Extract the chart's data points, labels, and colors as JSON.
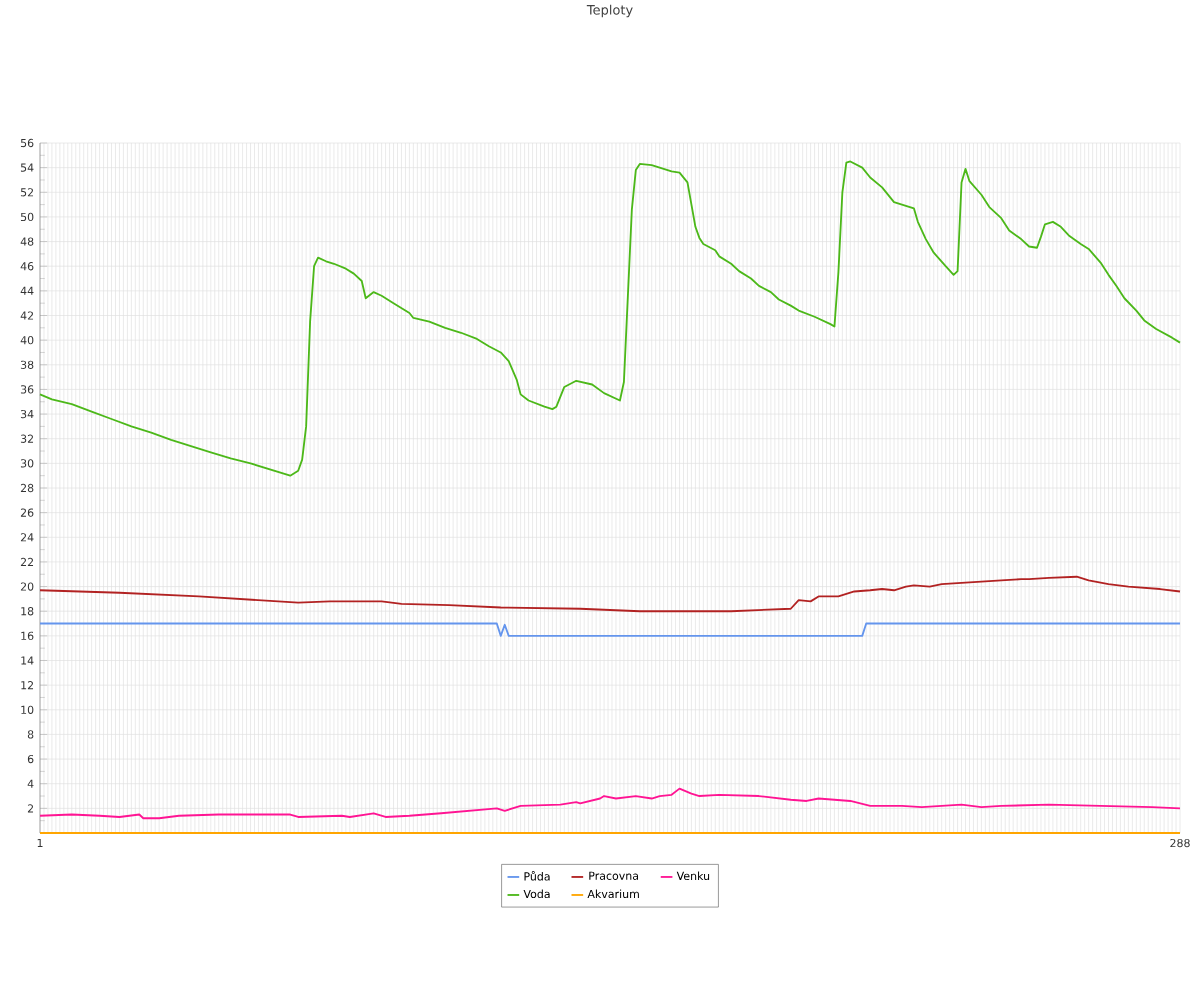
{
  "chart_data": {
    "type": "line",
    "title": "Teploty",
    "xlim": [
      1,
      288
    ],
    "xticks": [
      1,
      {
        "value": 2,
        "label": null
      },
      {
        "value": 3,
        "label": null
      },
      {
        "value": 4,
        "label": null
      },
      {
        "value": 5,
        "label": null
      },
      {
        "value": 6,
        "label": null
      },
      {
        "value": 7,
        "label": null
      },
      {
        "value": 8,
        "label": null
      },
      {
        "value": 9,
        "label": null
      },
      {
        "value": 10,
        "label": null
      },
      {
        "value": 11,
        "label": null
      },
      {
        "value": 12,
        "label": null
      },
      {
        "value": 13,
        "label": null
      },
      {
        "value": 14,
        "label": null
      },
      {
        "value": 15,
        "label": null
      },
      {
        "value": 16,
        "label": null
      },
      {
        "value": 17,
        "label": null
      },
      {
        "value": 18,
        "label": null
      },
      {
        "value": 19,
        "label": null
      },
      {
        "value": 20,
        "label": null
      },
      {
        "value": 21,
        "label": null
      },
      {
        "value": 22,
        "label": null
      },
      {
        "value": 23,
        "label": null
      },
      {
        "value": 24,
        "label": null
      },
      {
        "value": 25,
        "label": null
      },
      {
        "value": 26,
        "label": null
      },
      {
        "value": 27,
        "label": null
      },
      {
        "value": 28,
        "label": null
      },
      {
        "value": 29,
        "label": null
      },
      {
        "value": 30,
        "label": null
      },
      {
        "value": 31,
        "label": null
      },
      {
        "value": 32,
        "label": null
      },
      {
        "value": 33,
        "label": null
      },
      {
        "value": 34,
        "label": null
      },
      {
        "value": 35,
        "label": null
      },
      {
        "value": 36,
        "label": null
      },
      {
        "value": 37,
        "label": null
      },
      {
        "value": 38,
        "label": null
      },
      {
        "value": 39,
        "label": null
      },
      {
        "value": 40,
        "label": null
      },
      {
        "value": 41,
        "label": null
      },
      {
        "value": 42,
        "label": null
      },
      {
        "value": 43,
        "label": null
      },
      {
        "value": 44,
        "label": null
      },
      {
        "value": 45,
        "label": null
      },
      {
        "value": 46,
        "label": null
      },
      {
        "value": 47,
        "label": null
      },
      {
        "value": 48,
        "label": null
      },
      {
        "value": 49,
        "label": null
      },
      {
        "value": 50,
        "label": null
      },
      {
        "value": 51,
        "label": null
      },
      {
        "value": 52,
        "label": null
      },
      {
        "value": 53,
        "label": null
      },
      {
        "value": 54,
        "label": null
      },
      {
        "value": 55,
        "label": null
      },
      {
        "value": 56,
        "label": null
      },
      {
        "value": 57,
        "label": null
      },
      {
        "value": 58,
        "label": null
      },
      {
        "value": 59,
        "label": null
      },
      {
        "value": 60,
        "label": null
      },
      {
        "value": 61,
        "label": null
      },
      {
        "value": 62,
        "label": null
      },
      {
        "value": 63,
        "label": null
      },
      {
        "value": 64,
        "label": null
      },
      {
        "value": 65,
        "label": null
      },
      {
        "value": 66,
        "label": null
      },
      {
        "value": 67,
        "label": null
      },
      {
        "value": 68,
        "label": null
      },
      {
        "value": 69,
        "label": null
      },
      {
        "value": 70,
        "label": null
      },
      {
        "value": 71,
        "label": null
      },
      {
        "value": 72,
        "label": null
      },
      {
        "value": 73,
        "label": null
      },
      {
        "value": 74,
        "label": null
      },
      {
        "value": 75,
        "label": null
      },
      {
        "value": 76,
        "label": null
      },
      {
        "value": 77,
        "label": null
      },
      {
        "value": 78,
        "label": null
      },
      {
        "value": 79,
        "label": null
      },
      {
        "value": 80,
        "label": null
      },
      {
        "value": 81,
        "label": null
      },
      {
        "value": 82,
        "label": null
      },
      {
        "value": 83,
        "label": null
      },
      {
        "value": 84,
        "label": null
      },
      {
        "value": 85,
        "label": null
      },
      {
        "value": 86,
        "label": null
      },
      {
        "value": 87,
        "label": null
      },
      {
        "value": 88,
        "label": null
      },
      {
        "value": 89,
        "label": null
      },
      {
        "value": 90,
        "label": null
      },
      {
        "value": 91,
        "label": null
      },
      {
        "value": 92,
        "label": null
      },
      {
        "value": 93,
        "label": null
      },
      {
        "value": 94,
        "label": null
      },
      {
        "value": 95,
        "label": null
      },
      {
        "value": 96,
        "label": null
      },
      {
        "value": 97,
        "label": null
      },
      {
        "value": 98,
        "label": null
      },
      {
        "value": 99,
        "label": null
      },
      {
        "value": 100,
        "label": null
      },
      {
        "value": 101,
        "label": null
      },
      {
        "value": 102,
        "label": null
      },
      {
        "value": 103,
        "label": null
      },
      {
        "value": 104,
        "label": null
      },
      {
        "value": 105,
        "label": null
      },
      {
        "value": 106,
        "label": null
      },
      {
        "value": 107,
        "label": null
      },
      {
        "value": 108,
        "label": null
      },
      {
        "value": 109,
        "label": null
      },
      {
        "value": 110,
        "label": null
      },
      {
        "value": 111,
        "label": null
      },
      {
        "value": 112,
        "label": null
      },
      {
        "value": 113,
        "label": null
      },
      {
        "value": 114,
        "label": null
      },
      {
        "value": 115,
        "label": null
      },
      {
        "value": 116,
        "label": null
      },
      {
        "value": 117,
        "label": null
      },
      {
        "value": 118,
        "label": null
      },
      {
        "value": 119,
        "label": null
      },
      {
        "value": 120,
        "label": null
      },
      {
        "value": 121,
        "label": null
      },
      {
        "value": 122,
        "label": null
      },
      {
        "value": 123,
        "label": null
      },
      {
        "value": 124,
        "label": null
      },
      {
        "value": 125,
        "label": null
      },
      {
        "value": 126,
        "label": null
      },
      {
        "value": 127,
        "label": null
      },
      {
        "value": 128,
        "label": null
      },
      {
        "value": 129,
        "label": null
      },
      {
        "value": 130,
        "label": null
      },
      {
        "value": 131,
        "label": null
      },
      {
        "value": 132,
        "label": null
      },
      {
        "value": 133,
        "label": null
      },
      {
        "value": 134,
        "label": null
      },
      {
        "value": 135,
        "label": null
      },
      {
        "value": 136,
        "label": null
      },
      {
        "value": 137,
        "label": null
      },
      {
        "value": 138,
        "label": null
      },
      {
        "value": 139,
        "label": null
      },
      {
        "value": 140,
        "label": null
      },
      {
        "value": 141,
        "label": null
      },
      {
        "value": 142,
        "label": null
      },
      {
        "value": 143,
        "label": null
      },
      {
        "value": 144,
        "label": null
      },
      {
        "value": 145,
        "label": null
      },
      {
        "value": 146,
        "label": null
      },
      {
        "value": 147,
        "label": null
      },
      {
        "value": 148,
        "label": null
      },
      {
        "value": 149,
        "label": null
      },
      {
        "value": 150,
        "label": null
      },
      {
        "value": 151,
        "label": null
      },
      {
        "value": 152,
        "label": null
      },
      {
        "value": 153,
        "label": null
      },
      {
        "value": 154,
        "label": null
      },
      {
        "value": 155,
        "label": null
      },
      {
        "value": 156,
        "label": null
      },
      {
        "value": 157,
        "label": null
      },
      {
        "value": 158,
        "label": null
      },
      {
        "value": 159,
        "label": null
      },
      {
        "value": 160,
        "label": null
      },
      {
        "value": 161,
        "label": null
      },
      {
        "value": 162,
        "label": null
      },
      {
        "value": 163,
        "label": null
      },
      {
        "value": 164,
        "label": null
      },
      {
        "value": 165,
        "label": null
      },
      {
        "value": 166,
        "label": null
      },
      {
        "value": 167,
        "label": null
      },
      {
        "value": 168,
        "label": null
      },
      {
        "value": 169,
        "label": null
      },
      {
        "value": 170,
        "label": null
      },
      {
        "value": 171,
        "label": null
      },
      {
        "value": 172,
        "label": null
      },
      {
        "value": 173,
        "label": null
      },
      {
        "value": 174,
        "label": null
      },
      {
        "value": 175,
        "label": null
      },
      {
        "value": 176,
        "label": null
      },
      {
        "value": 177,
        "label": null
      },
      {
        "value": 178,
        "label": null
      },
      {
        "value": 179,
        "label": null
      },
      {
        "value": 180,
        "label": null
      },
      {
        "value": 181,
        "label": null
      },
      {
        "value": 182,
        "label": null
      },
      {
        "value": 183,
        "label": null
      },
      {
        "value": 184,
        "label": null
      },
      {
        "value": 185,
        "label": null
      },
      {
        "value": 186,
        "label": null
      },
      {
        "value": 187,
        "label": null
      },
      {
        "value": 188,
        "label": null
      },
      {
        "value": 189,
        "label": null
      },
      {
        "value": 190,
        "label": null
      },
      {
        "value": 191,
        "label": null
      },
      {
        "value": 192,
        "label": null
      },
      {
        "value": 193,
        "label": null
      },
      {
        "value": 194,
        "label": null
      },
      {
        "value": 195,
        "label": null
      },
      {
        "value": 196,
        "label": null
      },
      {
        "value": 197,
        "label": null
      },
      {
        "value": 198,
        "label": null
      },
      {
        "value": 199,
        "label": null
      },
      {
        "value": 200,
        "label": null
      },
      {
        "value": 201,
        "label": null
      },
      {
        "value": 202,
        "label": null
      },
      {
        "value": 203,
        "label": null
      },
      {
        "value": 204,
        "label": null
      },
      {
        "value": 205,
        "label": null
      },
      {
        "value": 206,
        "label": null
      },
      {
        "value": 207,
        "label": null
      },
      {
        "value": 208,
        "label": null
      },
      {
        "value": 209,
        "label": null
      },
      {
        "value": 210,
        "label": null
      },
      {
        "value": 211,
        "label": null
      },
      {
        "value": 212,
        "label": null
      },
      {
        "value": 213,
        "label": null
      },
      {
        "value": 214,
        "label": null
      },
      {
        "value": 215,
        "label": null
      },
      {
        "value": 216,
        "label": null
      },
      {
        "value": 217,
        "label": null
      },
      {
        "value": 218,
        "label": null
      },
      {
        "value": 219,
        "label": null
      },
      {
        "value": 220,
        "label": null
      },
      {
        "value": 221,
        "label": null
      },
      {
        "value": 222,
        "label": null
      },
      {
        "value": 223,
        "label": null
      },
      {
        "value": 224,
        "label": null
      },
      {
        "value": 225,
        "label": null
      },
      {
        "value": 226,
        "label": null
      },
      {
        "value": 227,
        "label": null
      },
      {
        "value": 228,
        "label": null
      },
      {
        "value": 229,
        "label": null
      },
      {
        "value": 230,
        "label": null
      },
      {
        "value": 231,
        "label": null
      },
      {
        "value": 232,
        "label": null
      },
      {
        "value": 233,
        "label": null
      },
      {
        "value": 234,
        "label": null
      },
      {
        "value": 235,
        "label": null
      },
      {
        "value": 236,
        "label": null
      },
      {
        "value": 237,
        "label": null
      },
      {
        "value": 238,
        "label": null
      },
      {
        "value": 239,
        "label": null
      },
      {
        "value": 240,
        "label": null
      },
      {
        "value": 241,
        "label": null
      },
      {
        "value": 242,
        "label": null
      },
      {
        "value": 243,
        "label": null
      },
      {
        "value": 244,
        "label": null
      },
      {
        "value": 245,
        "label": null
      },
      {
        "value": 246,
        "label": null
      },
      {
        "value": 247,
        "label": null
      },
      {
        "value": 248,
        "label": null
      },
      {
        "value": 249,
        "label": null
      },
      {
        "value": 250,
        "label": null
      },
      {
        "value": 251,
        "label": null
      },
      {
        "value": 252,
        "label": null
      },
      {
        "value": 253,
        "label": null
      },
      {
        "value": 254,
        "label": null
      },
      {
        "value": 255,
        "label": null
      },
      {
        "value": 256,
        "label": null
      },
      {
        "value": 257,
        "label": null
      },
      {
        "value": 258,
        "label": null
      },
      {
        "value": 259,
        "label": null
      },
      {
        "value": 260,
        "label": null
      },
      {
        "value": 261,
        "label": null
      },
      {
        "value": 262,
        "label": null
      },
      {
        "value": 263,
        "label": null
      },
      {
        "value": 264,
        "label": null
      },
      {
        "value": 265,
        "label": null
      },
      {
        "value": 266,
        "label": null
      },
      {
        "value": 267,
        "label": null
      },
      {
        "value": 268,
        "label": null
      },
      {
        "value": 269,
        "label": null
      },
      {
        "value": 270,
        "label": null
      },
      {
        "value": 271,
        "label": null
      },
      {
        "value": 272,
        "label": null
      },
      {
        "value": 273,
        "label": null
      },
      {
        "value": 274,
        "label": null
      },
      {
        "value": 275,
        "label": null
      },
      {
        "value": 276,
        "label": null
      },
      {
        "value": 277,
        "label": null
      },
      {
        "value": 278,
        "label": null
      },
      {
        "value": 279,
        "label": null
      },
      {
        "value": 280,
        "label": null
      },
      {
        "value": 281,
        "label": null
      },
      {
        "value": 282,
        "label": null
      },
      {
        "value": 283,
        "label": null
      },
      {
        "value": 284,
        "label": null
      },
      {
        "value": 285,
        "label": null
      },
      {
        "value": 286,
        "label": null
      },
      {
        "value": 287,
        "label": null
      },
      288
    ],
    "ylim": [
      0,
      56
    ],
    "yticks": [
      {
        "value": 0,
        "label": null
      },
      2,
      4,
      6,
      8,
      10,
      12,
      14,
      16,
      18,
      20,
      22,
      24,
      26,
      28,
      30,
      32,
      34,
      36,
      38,
      40,
      42,
      44,
      46,
      48,
      50,
      52,
      54,
      56
    ],
    "grid": true,
    "legend": "bottom",
    "series": [
      {
        "name": "Půda",
        "color": "#6495ed",
        "x": [
          1,
          116,
          117,
          118,
          119,
          208,
          209,
          288
        ],
        "values": [
          17,
          17,
          16,
          16.9,
          16,
          16,
          17,
          17
        ]
      },
      {
        "name": "Pracovna",
        "color": "#b22222",
        "x": [
          1,
          21,
          41,
          66,
          74,
          87,
          92,
          104,
          117,
          137,
          152,
          175,
          190,
          192,
          195,
          197,
          202,
          206,
          210,
          213,
          216,
          219,
          221,
          225,
          228,
          233,
          238,
          243,
          248,
          250,
          255,
          262,
          265,
          270,
          275,
          283,
          288
        ],
        "values": [
          19.7,
          19.5,
          19.2,
          18.7,
          18.8,
          18.8,
          18.6,
          18.5,
          18.3,
          18.2,
          18.0,
          18.0,
          18.2,
          18.9,
          18.8,
          19.2,
          19.2,
          19.6,
          19.7,
          19.8,
          19.7,
          20.0,
          20.1,
          20.0,
          20.2,
          20.3,
          20.4,
          20.5,
          20.6,
          20.6,
          20.7,
          20.8,
          20.5,
          20.2,
          20.0,
          19.8,
          19.6
        ]
      },
      {
        "name": "Venku",
        "color": "#ff1493",
        "x": [
          1,
          9,
          16,
          21,
          26,
          27,
          31,
          36,
          46,
          64,
          66,
          77,
          79,
          85,
          88,
          94,
          102,
          109,
          116,
          118,
          122,
          132,
          136,
          137,
          142,
          143,
          146,
          151,
          155,
          157,
          160,
          162,
          165,
          167,
          172,
          182,
          190,
          194,
          197,
          205,
          210,
          218,
          223,
          233,
          238,
          243,
          255,
          268,
          281,
          288
        ],
        "values": [
          1.4,
          1.5,
          1.4,
          1.3,
          1.5,
          1.2,
          1.2,
          1.4,
          1.5,
          1.5,
          1.3,
          1.4,
          1.3,
          1.6,
          1.3,
          1.4,
          1.6,
          1.8,
          2.0,
          1.8,
          2.2,
          2.3,
          2.5,
          2.4,
          2.8,
          3.0,
          2.8,
          3.0,
          2.8,
          3.0,
          3.1,
          3.6,
          3.2,
          3.0,
          3.1,
          3.0,
          2.7,
          2.6,
          2.8,
          2.6,
          2.2,
          2.2,
          2.1,
          2.3,
          2.1,
          2.2,
          2.3,
          2.2,
          2.1,
          2.0
        ]
      },
      {
        "name": "Voda",
        "color": "#4cb819",
        "x": [
          1,
          4,
          9,
          14,
          19,
          24,
          29,
          34,
          39,
          44,
          49,
          54,
          59,
          64,
          66,
          67,
          68,
          69,
          70,
          71,
          73,
          75,
          78,
          80,
          82,
          83,
          85,
          87,
          90,
          94,
          95,
          99,
          103,
          107,
          111,
          114,
          117,
          119,
          121,
          122,
          124,
          128,
          130,
          131,
          133,
          136,
          140,
          143,
          147,
          148,
          150,
          151,
          152,
          155,
          157,
          160,
          162,
          164,
          165,
          166,
          167,
          168,
          171,
          172,
          175,
          177,
          180,
          182,
          185,
          187,
          190,
          192,
          196,
          200,
          201,
          202,
          203,
          204,
          205,
          208,
          210,
          213,
          216,
          219,
          221,
          222,
          224,
          226,
          229,
          231,
          232,
          233,
          234,
          235,
          238,
          240,
          243,
          245,
          248,
          250,
          252,
          253,
          254,
          256,
          258,
          260,
          263,
          265,
          268,
          270,
          272,
          274,
          277,
          279,
          282,
          286,
          288
        ],
        "values": [
          35.6,
          35.2,
          34.8,
          34.2,
          33.6,
          33.0,
          32.5,
          31.9,
          31.4,
          30.9,
          30.4,
          30.0,
          29.5,
          29.0,
          29.4,
          30.3,
          33.0,
          41.5,
          46.0,
          46.7,
          46.4,
          46.2,
          45.8,
          45.4,
          44.8,
          43.4,
          43.9,
          43.6,
          43.0,
          42.2,
          41.8,
          41.5,
          41.0,
          40.6,
          40.1,
          39.5,
          39.0,
          38.3,
          36.8,
          35.6,
          35.1,
          34.6,
          34.4,
          34.6,
          36.2,
          36.7,
          36.4,
          35.7,
          35.1,
          36.6,
          50.6,
          53.8,
          54.3,
          54.2,
          54.0,
          53.7,
          53.6,
          52.8,
          51.0,
          49.2,
          48.3,
          47.8,
          47.3,
          46.8,
          46.2,
          45.6,
          45.0,
          44.4,
          43.9,
          43.3,
          42.8,
          42.4,
          41.9,
          41.3,
          41.1,
          45.5,
          52.0,
          54.4,
          54.5,
          54.0,
          53.2,
          52.4,
          51.2,
          50.9,
          50.7,
          49.6,
          48.2,
          47.1,
          46.0,
          45.3,
          45.6,
          52.8,
          53.9,
          52.9,
          51.8,
          50.8,
          49.9,
          48.9,
          48.2,
          47.6,
          47.5,
          48.4,
          49.4,
          49.6,
          49.2,
          48.5,
          47.8,
          47.4,
          46.3,
          45.3,
          44.4,
          43.4,
          42.4,
          41.6,
          40.9,
          40.2,
          39.8
        ]
      },
      {
        "name": "Akvarium",
        "color": "#ffa500",
        "x": [
          1,
          288
        ],
        "values": [
          0,
          0
        ]
      }
    ]
  }
}
